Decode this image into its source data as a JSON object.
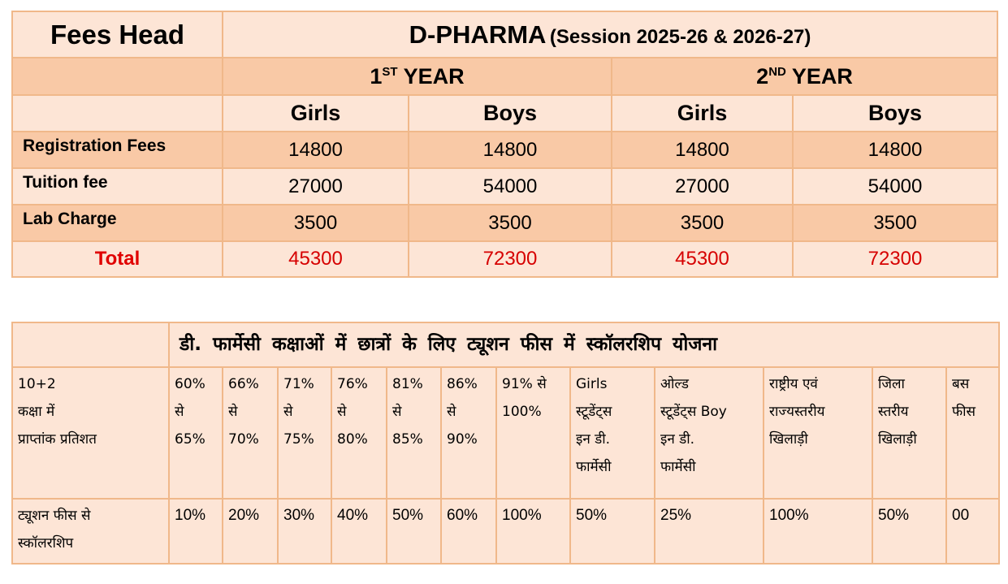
{
  "fees_table": {
    "head_label": "Fees Head",
    "program": "D-PHARMA",
    "session": "(Session 2025-26 & 2026-27)",
    "years": [
      {
        "num": "1",
        "sup": "ST",
        "label": "YEAR"
      },
      {
        "num": "2",
        "sup": "ND",
        "label": "YEAR"
      }
    ],
    "genders": [
      "Girls",
      "Boys",
      "Girls",
      "Boys"
    ],
    "rows": [
      {
        "label": "Registration Fees",
        "values": [
          "14800",
          "14800",
          "14800",
          "14800"
        ]
      },
      {
        "label": "Tuition fee",
        "values": [
          "27000",
          "54000",
          "27000",
          "54000"
        ]
      },
      {
        "label": "Lab Charge",
        "values": [
          "3500",
          "3500",
          "3500",
          "3500"
        ]
      }
    ],
    "total": {
      "label": "Total",
      "values": [
        "45300",
        "72300",
        "45300",
        "72300"
      ]
    }
  },
  "scholarship_table": {
    "title": "डी. फार्मेसी कक्षाओं में छात्रों के लिए  ट्यूशन फीस  में स्कॉलरशिप योजना",
    "row1_label": "10+2\nकक्षा में\nप्राप्तांक प्रतिशत",
    "criteria": [
      "60%\nसे\n65%",
      "66%\nसे\n70%",
      "71%\nसे\n75%",
      "76%\nसे\n80%",
      "81%\nसे\n85%",
      "86%\nसे\n90%",
      "91% से\n100%",
      "Girls\nस्टूडेंट्स\nइन डी.\nफार्मेसी",
      "ओल्ड\nस्टूडेंट्स Boy\nइन डी.\nफार्मेसी",
      "राष्ट्रीय एवं\nराज्यस्तरीय\nखिलाड़ी",
      "जिला\nस्तरीय\nखिलाड़ी",
      "बस\nफीस"
    ],
    "row2_label": "ट्यूशन फीस से\nस्कॉलरशिप",
    "scholarships": [
      "10%",
      "20%",
      "30%",
      "40%",
      "50%",
      "60%",
      "100%",
      "50%",
      "25%",
      "100%",
      "50%",
      "00"
    ]
  }
}
